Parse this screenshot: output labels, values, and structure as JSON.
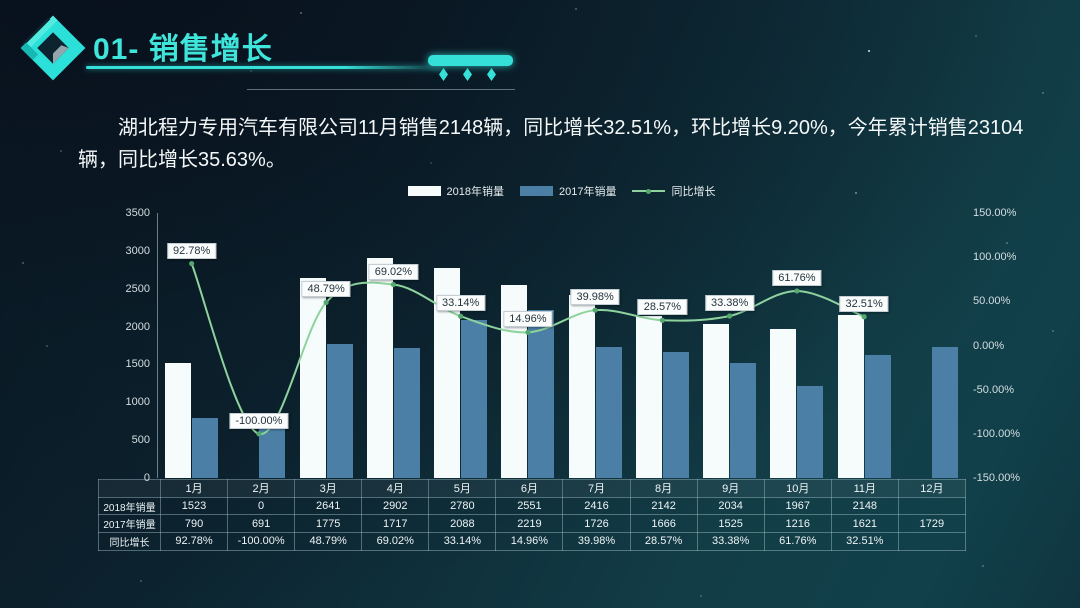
{
  "header": {
    "title": "01- 销售增长"
  },
  "intro": {
    "text": "湖北程力专用汽车有限公司11月销售2148辆，同比增长32.51%，环比增长9.20%，今年累计销售23104辆，同比增长35.63%。"
  },
  "colors": {
    "accent": "#35e0d8",
    "title": "#3fe4da",
    "bar_2018": "#f6fbfb",
    "bar_2017": "#4b7fa5",
    "line": "#8ed39e",
    "line_dot": "#55a86e",
    "label_box_bg": "#fbfdfd",
    "label_box_text": "#24343c"
  },
  "chart_data": {
    "type": "combo-bar-line",
    "title": "",
    "xlabel": "",
    "ylabel_left": "",
    "ylabel_right": "",
    "grid": false,
    "legend_position": "top",
    "categories": [
      "1月",
      "2月",
      "3月",
      "4月",
      "5月",
      "6月",
      "7月",
      "8月",
      "9月",
      "10月",
      "11月",
      "12月"
    ],
    "series": [
      {
        "name": "2018年销量",
        "type": "bar",
        "axis": "left",
        "color": "#f6fbfb",
        "values": [
          1523,
          0,
          2641,
          2902,
          2780,
          2551,
          2416,
          2142,
          2034,
          1967,
          2148,
          null
        ]
      },
      {
        "name": "2017年销量",
        "type": "bar",
        "axis": "left",
        "color": "#4b7fa5",
        "values": [
          790,
          691,
          1775,
          1717,
          2088,
          2219,
          1726,
          1666,
          1525,
          1216,
          1621,
          1729
        ]
      },
      {
        "name": "同比增长",
        "type": "line",
        "axis": "right",
        "color": "#8ed39e",
        "dot_color": "#55a86e",
        "values": [
          92.78,
          -100.0,
          48.79,
          69.02,
          33.14,
          14.96,
          39.98,
          28.57,
          33.38,
          61.76,
          32.51,
          null
        ],
        "labels": [
          "92.78%",
          "-100.00%",
          "48.79%",
          "69.02%",
          "33.14%",
          "14.96%",
          "39.98%",
          "28.57%",
          "33.38%",
          "61.76%",
          "32.51%",
          ""
        ]
      }
    ],
    "left_axis": {
      "min": 0,
      "max": 3500,
      "ticks": [
        "3500",
        "3000",
        "2500",
        "2000",
        "1500",
        "1000",
        "500",
        "0"
      ]
    },
    "right_axis": {
      "min": -150,
      "max": 150,
      "ticks": [
        "150.00%",
        "100.00%",
        "50.00%",
        "0.00%",
        "-50.00%",
        "-100.00%",
        "-150.00%"
      ]
    },
    "table": {
      "corner": "",
      "row_labels": [
        "2018年销量",
        "2017年销量",
        "同比增长"
      ],
      "rows": [
        [
          "1523",
          "0",
          "2641",
          "2902",
          "2780",
          "2551",
          "2416",
          "2142",
          "2034",
          "1967",
          "2148",
          ""
        ],
        [
          "790",
          "691",
          "1775",
          "1717",
          "2088",
          "2219",
          "1726",
          "1666",
          "1525",
          "1216",
          "1621",
          "1729"
        ],
        [
          "92.78%",
          "-100.00%",
          "48.79%",
          "69.02%",
          "33.14%",
          "14.96%",
          "39.98%",
          "28.57%",
          "33.38%",
          "61.76%",
          "32.51%",
          ""
        ]
      ]
    }
  }
}
